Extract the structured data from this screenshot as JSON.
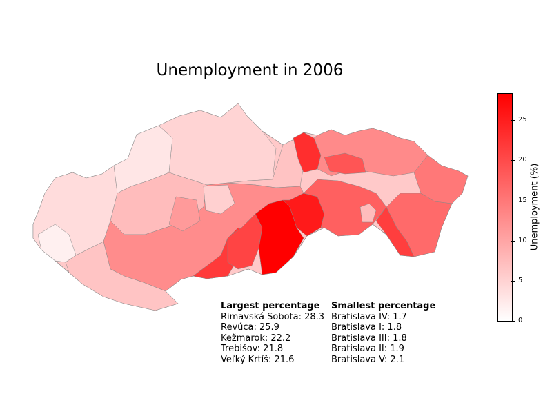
{
  "title": "Unemployment in 2006",
  "colorbar": {
    "label": "Unemployment (%)",
    "min": 0,
    "max": 28.3,
    "ticks": [
      "0",
      "5",
      "10",
      "15",
      "20",
      "25"
    ],
    "low_color": "#ffffff",
    "high_color": "#ff0000"
  },
  "largest": {
    "heading": "Largest percentage",
    "items": [
      "Rimavská Sobota: 28.3",
      "Revúca: 25.9",
      "Kežmarok: 22.2",
      "Trebišov: 21.8",
      "Veľký Krtíš: 21.6"
    ]
  },
  "smallest": {
    "heading": "Smallest percentage",
    "items": [
      "Bratislava IV: 1.7",
      "Bratislava I: 1.8",
      "Bratislava III: 1.8",
      "Bratislava II: 1.9",
      "Bratislava V: 2.1"
    ]
  }
}
